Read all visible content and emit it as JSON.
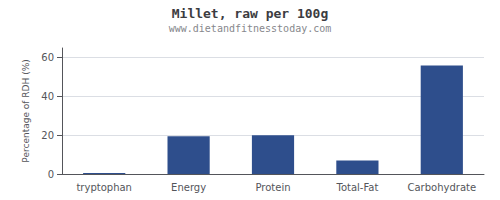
{
  "chart_data": {
    "type": "bar",
    "title": "Millet, raw per 100g",
    "subtitle": "www.dietandfitnesstoday.com",
    "categories": [
      "tryptophan",
      "Energy",
      "Protein",
      "Total-Fat",
      "Carbohydrate"
    ],
    "values": [
      0.5,
      19.5,
      20.0,
      7.0,
      56.0
    ],
    "color": "#2e4e8c",
    "ylabel": "Percentage of RDH (%)",
    "ylim": [
      0,
      65
    ],
    "yticks": [
      0,
      20,
      40,
      60
    ],
    "grid": true
  }
}
